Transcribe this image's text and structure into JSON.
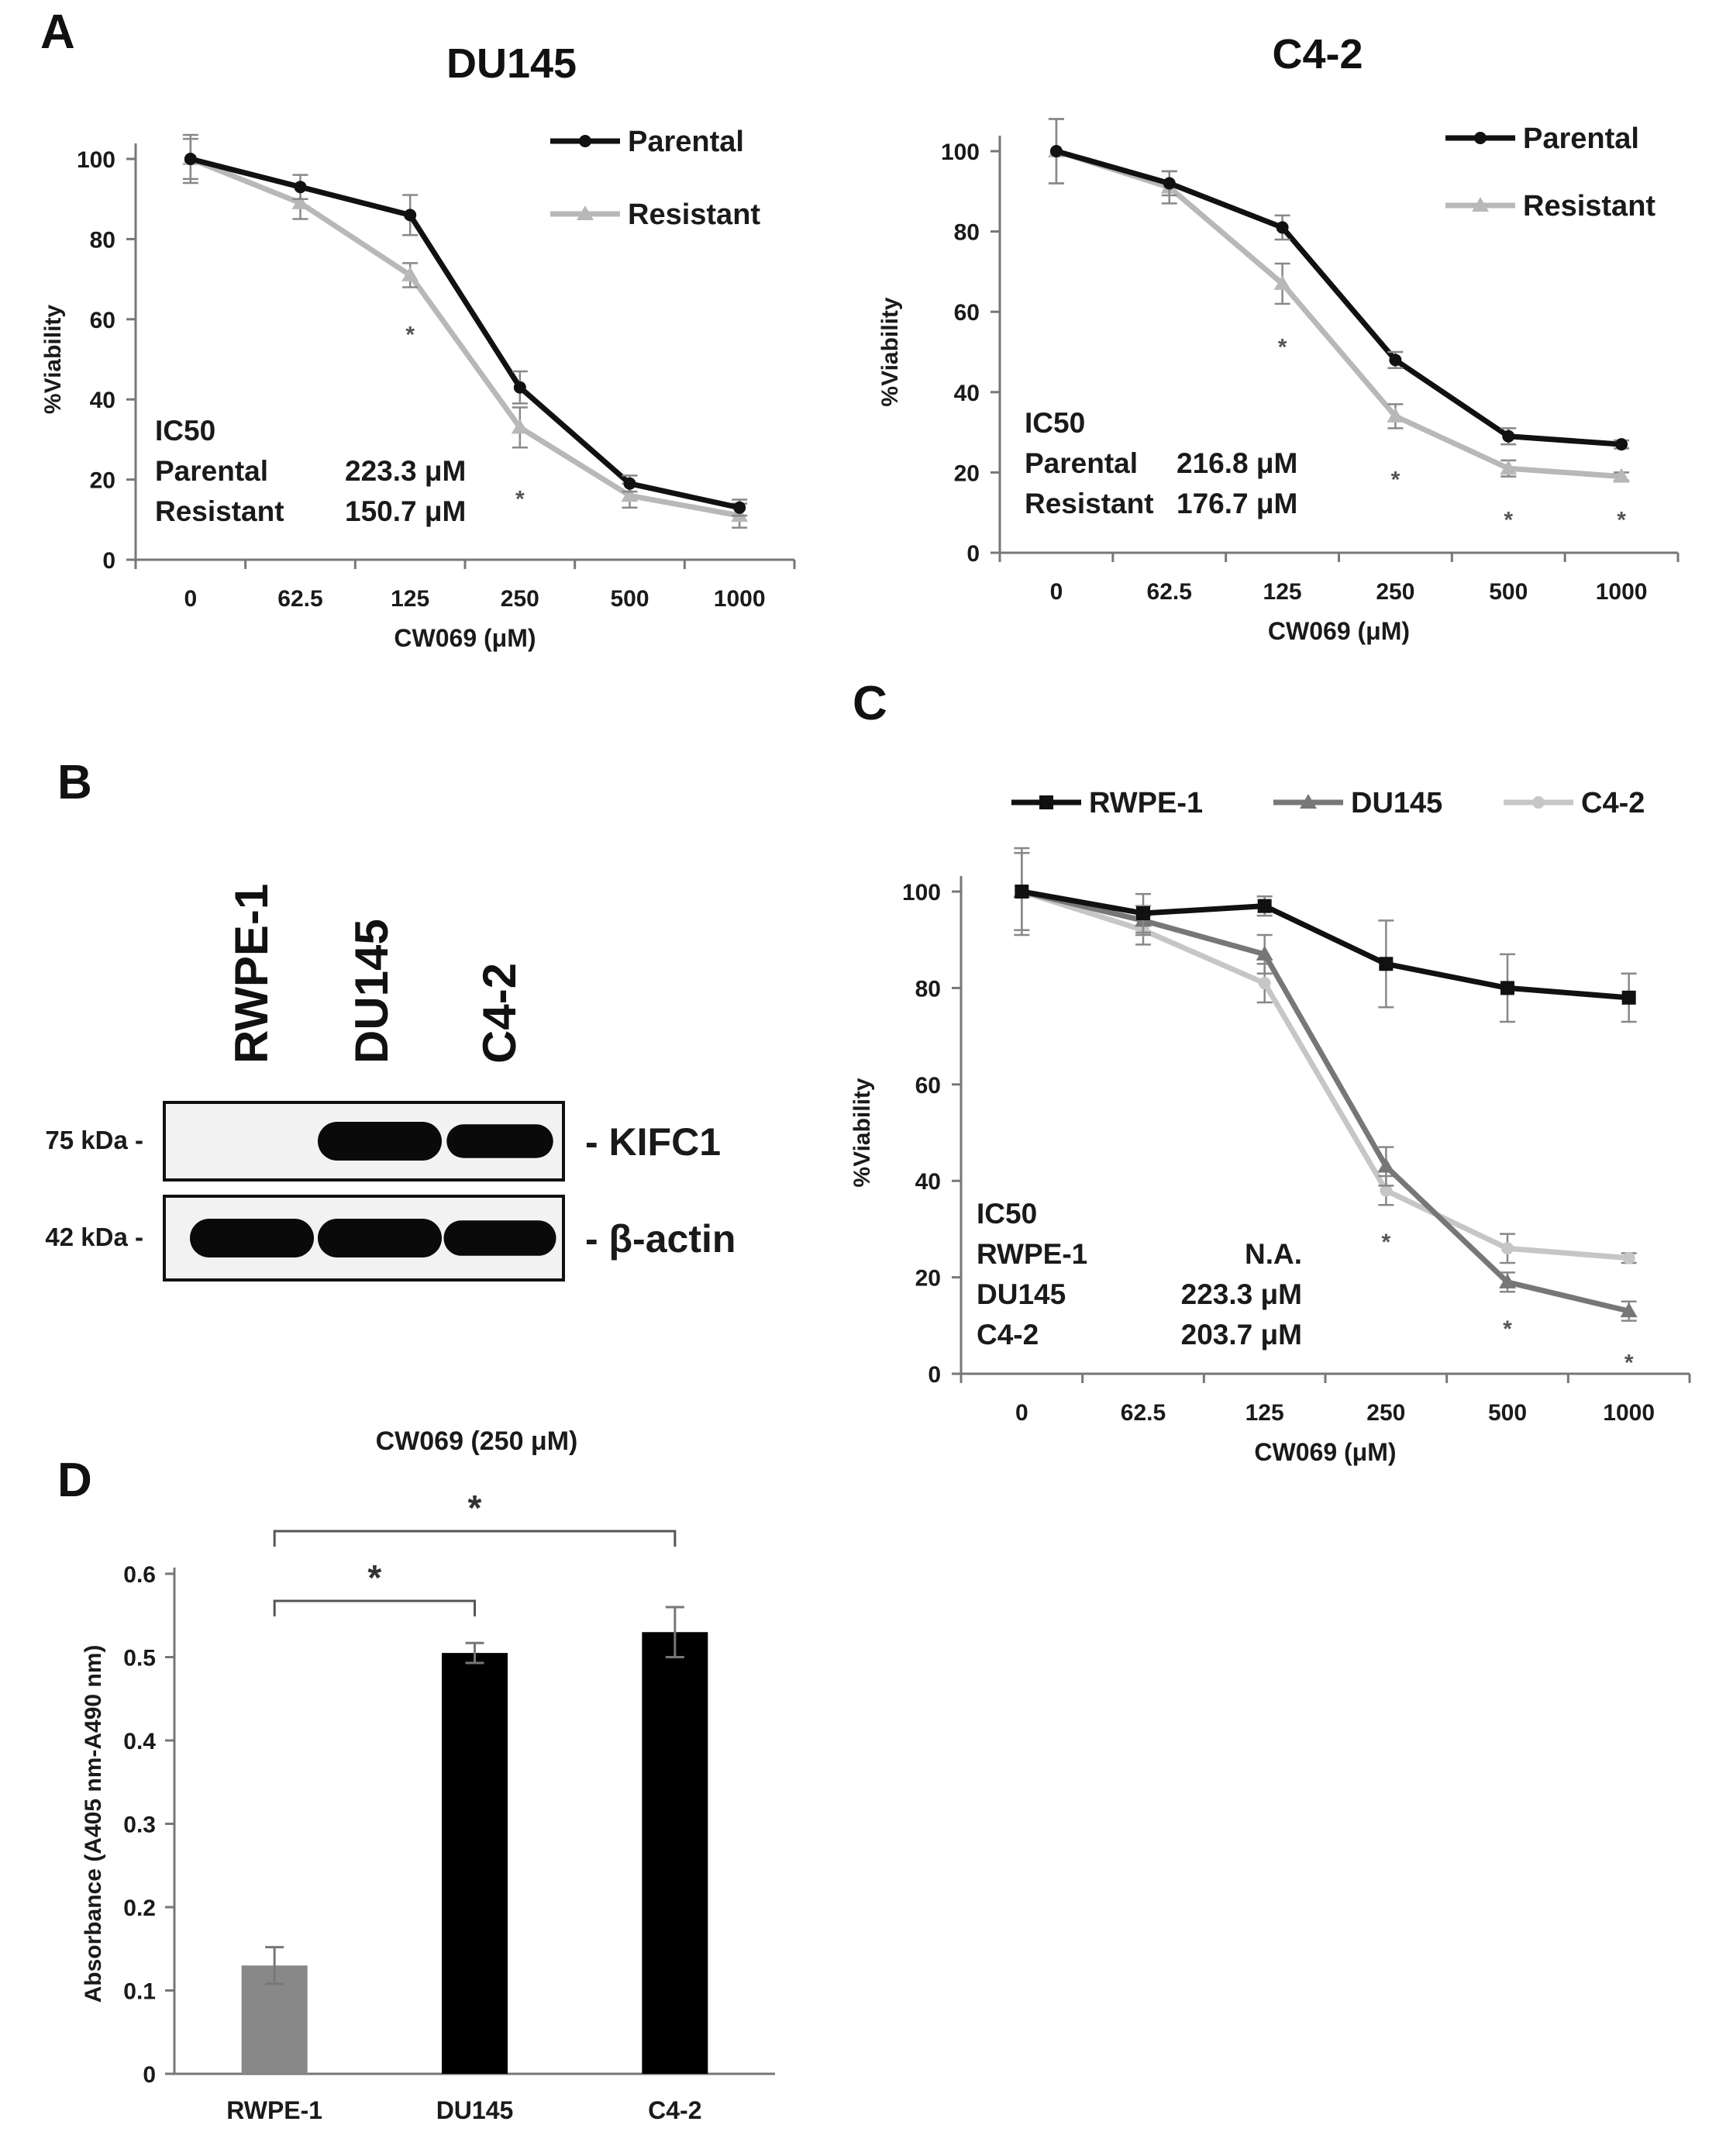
{
  "panels": {
    "A": "A",
    "B": "B",
    "C": "C",
    "D": "D"
  },
  "chart_data": [
    {
      "id": "A1",
      "type": "line",
      "title": "DU145",
      "xlabel": "CW069 (μM)",
      "ylabel": "%Viability",
      "categories": [
        "0",
        "62.5",
        "125",
        "250",
        "500",
        "1000"
      ],
      "ylim": [
        0,
        100
      ],
      "yticks": [
        0,
        20,
        40,
        60,
        80,
        100
      ],
      "legend_position": "top-right",
      "series": [
        {
          "name": "Parental",
          "color": "#111111",
          "marker": "circle",
          "values": [
            100,
            93,
            86,
            43,
            19,
            13
          ],
          "errors": [
            5,
            3,
            5,
            4,
            2,
            2
          ]
        },
        {
          "name": "Resistant",
          "color": "#b8b8b8",
          "marker": "triangle",
          "values": [
            100,
            89,
            71,
            33,
            16,
            11
          ],
          "errors": [
            6,
            4,
            3,
            5,
            3,
            3
          ]
        }
      ],
      "significance": [
        {
          "category": "125",
          "y": 57,
          "label": "*"
        },
        {
          "category": "250",
          "y": 16,
          "label": "*"
        }
      ],
      "ic50": {
        "heading": "IC50",
        "rows": [
          {
            "label": "Parental",
            "value": "223.3 μM"
          },
          {
            "label": "Resistant",
            "value": "150.7 μM"
          }
        ]
      }
    },
    {
      "id": "A2",
      "type": "line",
      "title": "C4-2",
      "xlabel": "CW069 (μM)",
      "ylabel": "%Viability",
      "categories": [
        "0",
        "62.5",
        "125",
        "250",
        "500",
        "1000"
      ],
      "ylim": [
        0,
        100
      ],
      "yticks": [
        0,
        20,
        40,
        60,
        80,
        100
      ],
      "legend_position": "top-right",
      "series": [
        {
          "name": "Parental",
          "color": "#111111",
          "marker": "circle",
          "values": [
            100,
            92,
            81,
            48,
            29,
            27
          ],
          "errors": [
            8,
            3,
            3,
            2,
            2,
            1
          ]
        },
        {
          "name": "Resistant",
          "color": "#b8b8b8",
          "marker": "triangle",
          "values": [
            100,
            91,
            67,
            34,
            21,
            19
          ],
          "errors": [
            8,
            4,
            5,
            3,
            2,
            1
          ]
        }
      ],
      "significance": [
        {
          "category": "125",
          "y": 52,
          "label": "*"
        },
        {
          "category": "250",
          "y": 19,
          "label": "*"
        },
        {
          "category": "500",
          "y": 9,
          "label": "*"
        },
        {
          "category": "1000",
          "y": 9,
          "label": "*"
        }
      ],
      "ic50": {
        "heading": "IC50",
        "rows": [
          {
            "label": "Parental",
            "value": "216.8 μM"
          },
          {
            "label": "Resistant",
            "value": "176.7 μM"
          }
        ]
      }
    },
    {
      "id": "C",
      "type": "line",
      "title": "",
      "xlabel": "CW069 (μM)",
      "ylabel": "%Viability",
      "categories": [
        "0",
        "62.5",
        "125",
        "250",
        "500",
        "1000"
      ],
      "ylim": [
        0,
        100
      ],
      "yticks": [
        0,
        20,
        40,
        60,
        80,
        100
      ],
      "legend_position": "top",
      "series": [
        {
          "name": "RWPE-1",
          "color": "#111111",
          "marker": "square",
          "values": [
            100,
            95.5,
            97,
            85,
            80,
            78
          ],
          "errors": [
            8,
            4,
            2,
            9,
            7,
            5
          ]
        },
        {
          "name": "DU145",
          "color": "#777777",
          "marker": "triangle",
          "values": [
            100,
            94,
            87,
            43,
            19,
            13
          ],
          "errors": [
            8,
            3,
            4,
            4,
            2,
            2
          ]
        },
        {
          "name": "C4-2",
          "color": "#c6c6c6",
          "marker": "circle",
          "values": [
            100,
            92,
            81,
            38,
            26,
            24
          ],
          "errors": [
            9,
            3,
            4,
            3,
            3,
            1
          ]
        }
      ],
      "significance": [
        {
          "category": "250",
          "y": 28,
          "label": "*"
        },
        {
          "category": "500",
          "y": 10,
          "label": "*"
        },
        {
          "category": "1000",
          "y": 3,
          "label": "*"
        }
      ],
      "ic50": {
        "heading": "IC50",
        "rows": [
          {
            "label": "RWPE-1",
            "value": "N.A."
          },
          {
            "label": "DU145",
            "value": "223.3 μM"
          },
          {
            "label": "C4-2",
            "value": "203.7 μM"
          }
        ]
      }
    },
    {
      "id": "D",
      "type": "bar",
      "title": "CW069 (250 μM)",
      "xlabel": "",
      "ylabel": "Absorbance (A405 nm-A490 nm)",
      "categories": [
        "RWPE-1",
        "DU145",
        "C4-2"
      ],
      "values": [
        0.13,
        0.505,
        0.53
      ],
      "errors": [
        0.022,
        0.012,
        0.03
      ],
      "colors": [
        "#888888",
        "#000000",
        "#000000"
      ],
      "ylim": [
        0,
        0.6
      ],
      "yticks": [
        "0",
        "0.1",
        "0.2",
        "0.3",
        "0.4",
        "0.5",
        "0.6"
      ],
      "significance": [
        {
          "from": "RWPE-1",
          "to": "DU145",
          "label": "*"
        },
        {
          "from": "RWPE-1",
          "to": "C4-2",
          "label": "*"
        }
      ]
    }
  ],
  "western_blot": {
    "lanes": [
      "RWPE-1",
      "DU145",
      "C4-2"
    ],
    "rows": [
      {
        "marker": "75 kDa -",
        "protein": "- KIFC1",
        "band_intensity": [
          0,
          1,
          0.85
        ]
      },
      {
        "marker": "42 kDa -",
        "protein": "- β-actin",
        "band_intensity": [
          1,
          1,
          0.9
        ]
      }
    ]
  }
}
